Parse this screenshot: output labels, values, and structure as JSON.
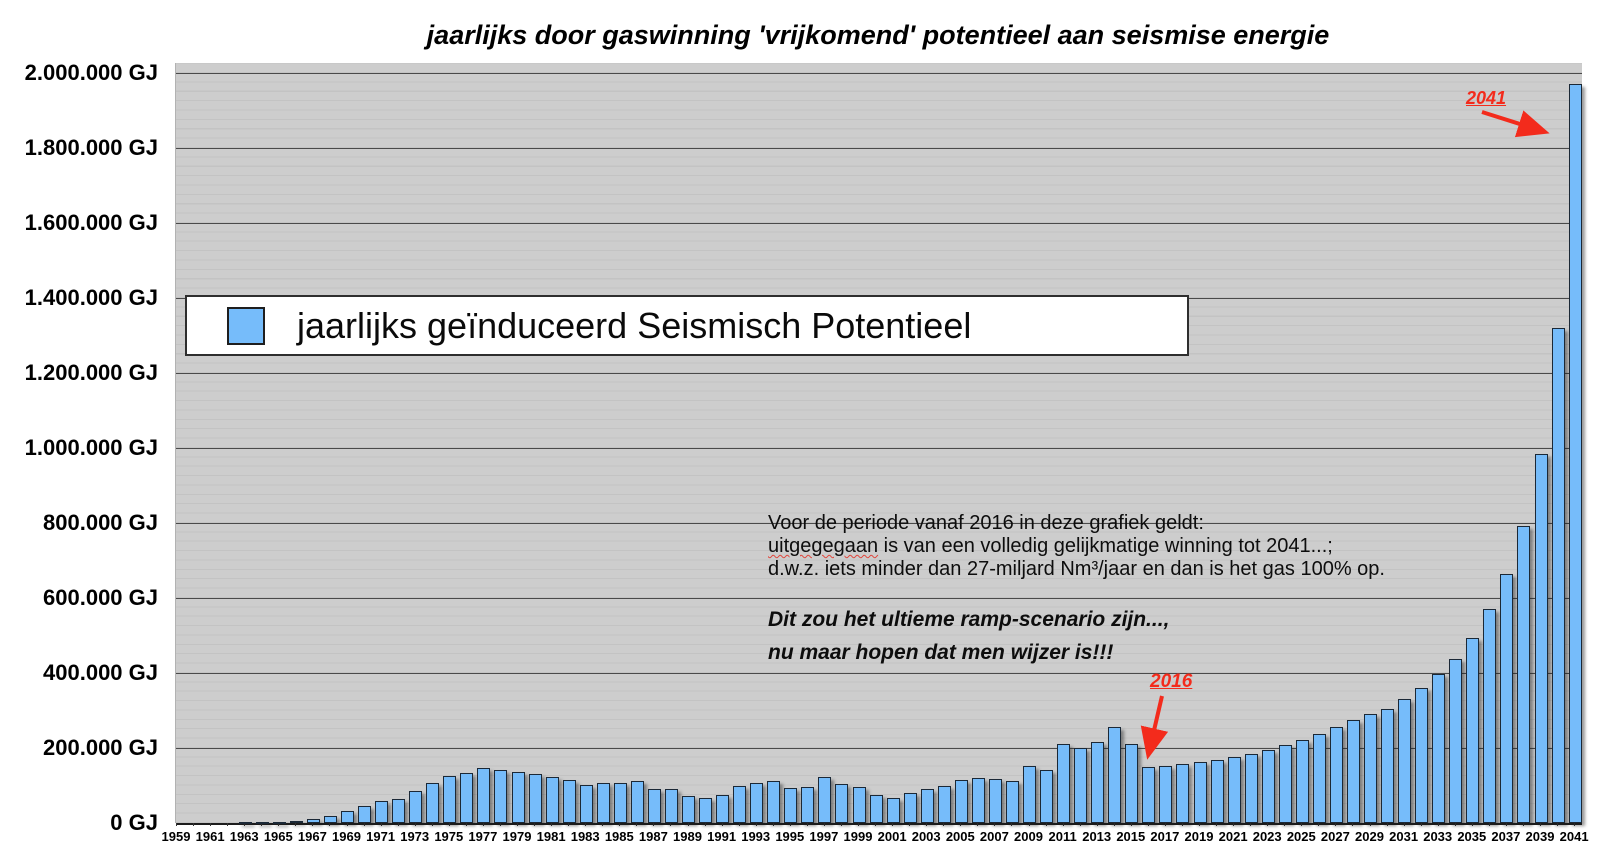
{
  "title": "jaarlijks door gaswinning 'vrijkomend' potentieel aan seismise energie",
  "legend": {
    "label": "jaarlijks geïnduceerd Seismisch Potentieel"
  },
  "y_axis": {
    "tick_labels": [
      "2.000.000 GJ",
      "1.800.000 GJ",
      "1.600.000 GJ",
      "1.400.000 GJ",
      "1.200.000 GJ",
      "1.000.000 GJ",
      "800.000 GJ",
      "600.000 GJ",
      "400.000 GJ",
      "200.000 GJ",
      "0 GJ"
    ]
  },
  "x_axis": {
    "tick_labels": [
      "1959",
      "1961",
      "1963",
      "1965",
      "1967",
      "1969",
      "1971",
      "1973",
      "1975",
      "1977",
      "1979",
      "1981",
      "1983",
      "1985",
      "1987",
      "1989",
      "1991",
      "1993",
      "1995",
      "1997",
      "1999",
      "2001",
      "2003",
      "2005",
      "2007",
      "2009",
      "2011",
      "2013",
      "2015",
      "2017",
      "2019",
      "2021",
      "2023",
      "2025",
      "2027",
      "2029",
      "2031",
      "2033",
      "2035",
      "2037",
      "2039",
      "2041"
    ]
  },
  "annotations": {
    "scenario_note": {
      "line1": "Voor de periode vanaf 2016 in deze grafiek geldt:",
      "line2_misspelled_word": "uitgegegaan",
      "line2_rest": " is van een volledig gelijkmatige winning tot 2041...;",
      "line3": "d.w.z. iets minder dan 27-miljard Nm³/jaar en dan is het gas 100% op."
    },
    "warning_note": {
      "line1": "Dit zou het ultieme ramp-scenario zijn...,",
      "line2": "nu maar hopen dat men wijzer is!!!"
    },
    "callout_2041": "2041",
    "callout_2016": "2016"
  },
  "colors": {
    "bar_fill": "#76bcfa",
    "bar_border": "#1b2836",
    "plot_background": "#cdcdcd",
    "annotation_red": "#f32b1c"
  },
  "chart_data": {
    "type": "bar",
    "title": "jaarlijks door gaswinning 'vrijkomend' potentieel aan seismise energie",
    "xlabel": "",
    "ylabel": "GJ",
    "ylim": [
      0,
      2000000
    ],
    "y_major_step": 200000,
    "y_minor_step": 25000,
    "grid": "horizontal",
    "legend_position": "upper-left-inside",
    "series_name": "jaarlijks geïnduceerd Seismisch Potentieel",
    "x": [
      1959,
      1960,
      1961,
      1962,
      1963,
      1964,
      1965,
      1966,
      1967,
      1968,
      1969,
      1970,
      1971,
      1972,
      1973,
      1974,
      1975,
      1976,
      1977,
      1978,
      1979,
      1980,
      1981,
      1982,
      1983,
      1984,
      1985,
      1986,
      1987,
      1988,
      1989,
      1990,
      1991,
      1992,
      1993,
      1994,
      1995,
      1996,
      1997,
      1998,
      1999,
      2000,
      2001,
      2002,
      2003,
      2004,
      2005,
      2006,
      2007,
      2008,
      2009,
      2010,
      2011,
      2012,
      2013,
      2014,
      2015,
      2016,
      2017,
      2018,
      2019,
      2020,
      2021,
      2022,
      2023,
      2024,
      2025,
      2026,
      2027,
      2028,
      2029,
      2030,
      2031,
      2032,
      2033,
      2034,
      2035,
      2036,
      2037,
      2038,
      2039,
      2040,
      2041
    ],
    "values": [
      0,
      0,
      0,
      0,
      1000,
      2000,
      3000,
      6000,
      11000,
      19000,
      32000,
      46000,
      58000,
      64000,
      86000,
      107000,
      126000,
      133000,
      146000,
      141000,
      135000,
      131000,
      122000,
      115000,
      101000,
      106000,
      106000,
      113000,
      92000,
      91000,
      73000,
      68000,
      75000,
      98000,
      108000,
      113000,
      93000,
      97000,
      122000,
      104000,
      95000,
      75000,
      68000,
      80000,
      91000,
      98000,
      116000,
      121000,
      118000,
      112000,
      151000,
      142000,
      211000,
      200000,
      216000,
      255000,
      212000,
      150000,
      153000,
      157000,
      162000,
      168000,
      175000,
      184000,
      196000,
      208000,
      222000,
      238000,
      256000,
      276000,
      290000,
      304000,
      331000,
      360000,
      397000,
      437000,
      493000,
      571000,
      664000,
      792000,
      985000,
      1320000,
      1970000
    ]
  }
}
